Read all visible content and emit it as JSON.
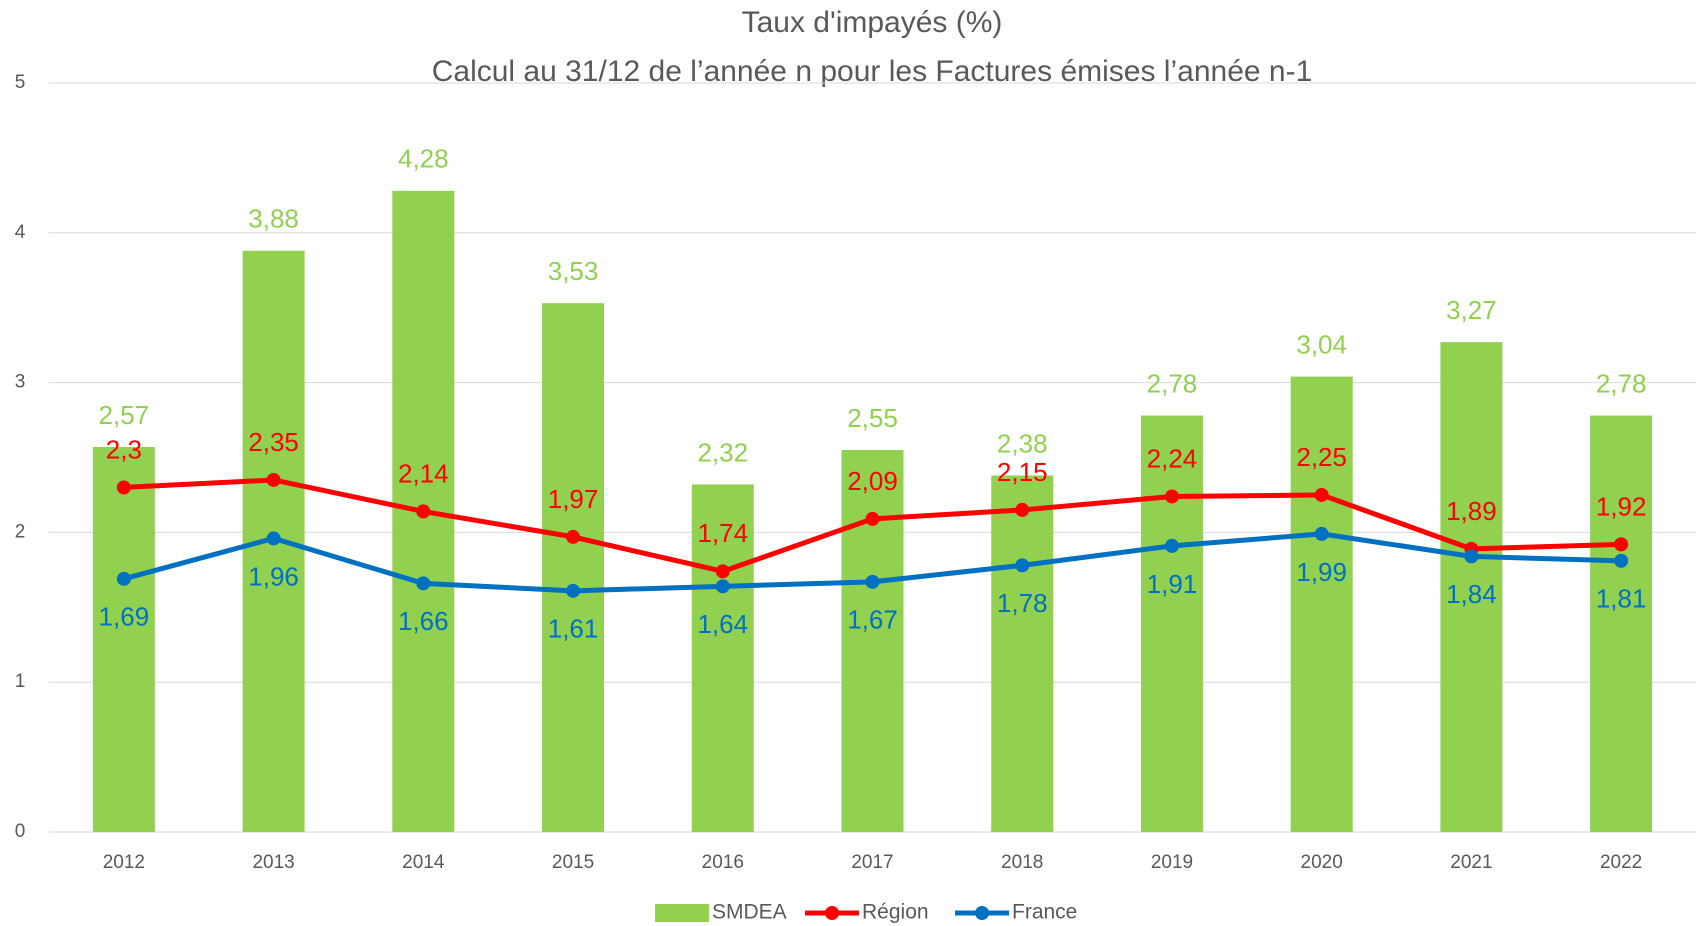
{
  "chart_data": {
    "type": "bar_line",
    "title": "Taux d'impayés (%)",
    "subtitle": "Calcul au 31/12 de l’année n pour les Factures émises l’année n-1",
    "categories": [
      "2012",
      "2013",
      "2014",
      "2015",
      "2016",
      "2017",
      "2018",
      "2019",
      "2020",
      "2021",
      "2022"
    ],
    "series": [
      {
        "name": "SMDEA",
        "type": "bar",
        "color": "#92d050",
        "values": [
          2.57,
          3.88,
          4.28,
          3.53,
          2.32,
          2.55,
          2.38,
          2.78,
          3.04,
          3.27,
          2.78
        ],
        "value_labels": [
          "2,57",
          "3,88",
          "4,28",
          "3,53",
          "2,32",
          "2,55",
          "2,38",
          "2,78",
          "3,04",
          "3,27",
          "2,78"
        ]
      },
      {
        "name": "Région",
        "type": "line",
        "color": "#ff0000",
        "values": [
          2.3,
          2.35,
          2.14,
          1.97,
          1.74,
          2.09,
          2.15,
          2.24,
          2.25,
          1.89,
          1.92
        ],
        "value_labels": [
          "2,3",
          "2,35",
          "2,14",
          "1,97",
          "1,74",
          "2,09",
          "2,15",
          "2,24",
          "2,25",
          "1,89",
          "1,92"
        ]
      },
      {
        "name": "France",
        "type": "line",
        "color": "#0070c0",
        "values": [
          1.69,
          1.96,
          1.66,
          1.61,
          1.64,
          1.67,
          1.78,
          1.91,
          1.99,
          1.84,
          1.81
        ],
        "value_labels": [
          "1,69",
          "1,96",
          "1,66",
          "1,61",
          "1,64",
          "1,67",
          "1,78",
          "1,91",
          "1,99",
          "1,84",
          "1,81"
        ]
      }
    ],
    "ylim": [
      0,
      5
    ],
    "yticks": [
      0,
      1,
      2,
      3,
      4,
      5
    ],
    "grid": true,
    "legend": "bottom"
  }
}
